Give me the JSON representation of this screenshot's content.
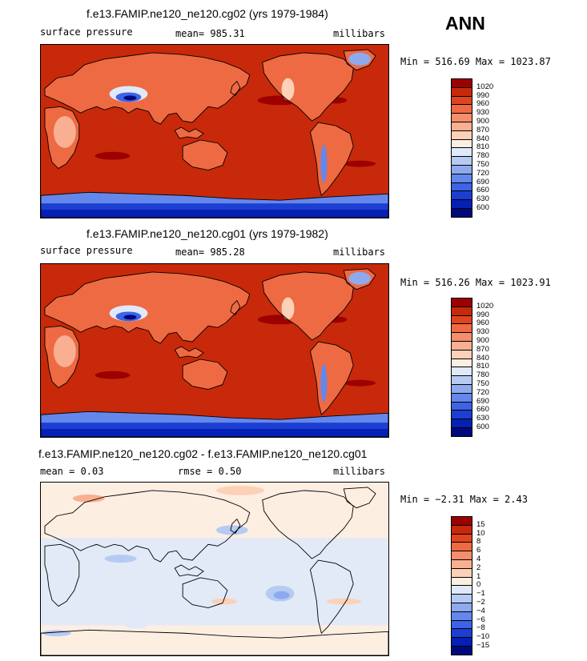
{
  "header": {
    "season": "ANN"
  },
  "panels": [
    {
      "title": "f.e13.FAMIP.ne120_ne120.cg02 (yrs 1979-1984)",
      "left_label": "surface pressure",
      "mean_text": "mean=  985.31",
      "units": "millibars",
      "minmax": "Min = 516.69  Max = 1023.87",
      "colorbar_labels": [
        "1020",
        "990",
        "960",
        "930",
        "900",
        "870",
        "840",
        "810",
        "780",
        "750",
        "720",
        "690",
        "660",
        "630",
        "600"
      ],
      "colorbar_colors": [
        "#9d0000",
        "#c8290a",
        "#e0441d",
        "#ee6a42",
        "#f58e6a",
        "#f9b092",
        "#fcd1b8",
        "#fdeee2",
        "#dfe9f9",
        "#b5cbf2",
        "#8eaaee",
        "#6487ec",
        "#3d63e6",
        "#1c3fd2",
        "#0520b4",
        "#00087d"
      ],
      "map_type": "absolute"
    },
    {
      "title": "f.e13.FAMIP.ne120_ne120.cg01 (yrs 1979-1982)",
      "left_label": "surface pressure",
      "mean_text": "mean=  985.28",
      "units": "millibars",
      "minmax": "Min = 516.26  Max = 1023.91",
      "colorbar_labels": [
        "1020",
        "990",
        "960",
        "930",
        "900",
        "870",
        "840",
        "810",
        "780",
        "750",
        "720",
        "690",
        "660",
        "630",
        "600"
      ],
      "colorbar_colors": [
        "#9d0000",
        "#c8290a",
        "#e0441d",
        "#ee6a42",
        "#f58e6a",
        "#f9b092",
        "#fcd1b8",
        "#fdeee2",
        "#dfe9f9",
        "#b5cbf2",
        "#8eaaee",
        "#6487ec",
        "#3d63e6",
        "#1c3fd2",
        "#0520b4",
        "#00087d"
      ],
      "map_type": "absolute"
    },
    {
      "title": "f.e13.FAMIP.ne120_ne120.cg02 - f.e13.FAMIP.ne120_ne120.cg01",
      "left_label": "mean =    0.03",
      "mean_text": "rmse =    0.50",
      "units": "millibars",
      "minmax": "Min =  −2.31  Max =    2.43",
      "colorbar_labels": [
        "15",
        "10",
        "8",
        "6",
        "4",
        "2",
        "1",
        "0",
        "−1",
        "−2",
        "−4",
        "−6",
        "−8",
        "−10",
        "−15"
      ],
      "colorbar_colors": [
        "#9d0000",
        "#c8290a",
        "#e0441d",
        "#ee6a42",
        "#f58e6a",
        "#f9b092",
        "#fcd1b8",
        "#fdeee2",
        "#dfe9f9",
        "#b5cbf2",
        "#8eaaee",
        "#6487ec",
        "#3d63e6",
        "#1c3fd2",
        "#0520b4",
        "#00087d"
      ],
      "map_type": "difference"
    }
  ],
  "chart_data": [
    {
      "type": "heatmap",
      "title": "f.e13.FAMIP.ne120_ne120.cg02 (yrs 1979-1984)",
      "variable": "surface pressure",
      "units": "millibars",
      "mean": 985.31,
      "min": 516.69,
      "max": 1023.87,
      "levels": [
        600,
        630,
        660,
        690,
        720,
        750,
        780,
        810,
        840,
        870,
        900,
        930,
        960,
        990,
        1020
      ]
    },
    {
      "type": "heatmap",
      "title": "f.e13.FAMIP.ne120_ne120.cg01 (yrs 1979-1982)",
      "variable": "surface pressure",
      "units": "millibars",
      "mean": 985.28,
      "min": 516.26,
      "max": 1023.91,
      "levels": [
        600,
        630,
        660,
        690,
        720,
        750,
        780,
        810,
        840,
        870,
        900,
        930,
        960,
        990,
        1020
      ]
    },
    {
      "type": "heatmap",
      "title": "f.e13.FAMIP.ne120_ne120.cg02 - f.e13.FAMIP.ne120_ne120.cg01",
      "units": "millibars",
      "mean": 0.03,
      "rmse": 0.5,
      "min": -2.31,
      "max": 2.43,
      "levels": [
        -15,
        -10,
        -8,
        -6,
        -4,
        -2,
        -1,
        0,
        1,
        2,
        4,
        6,
        8,
        10,
        15
      ]
    }
  ]
}
